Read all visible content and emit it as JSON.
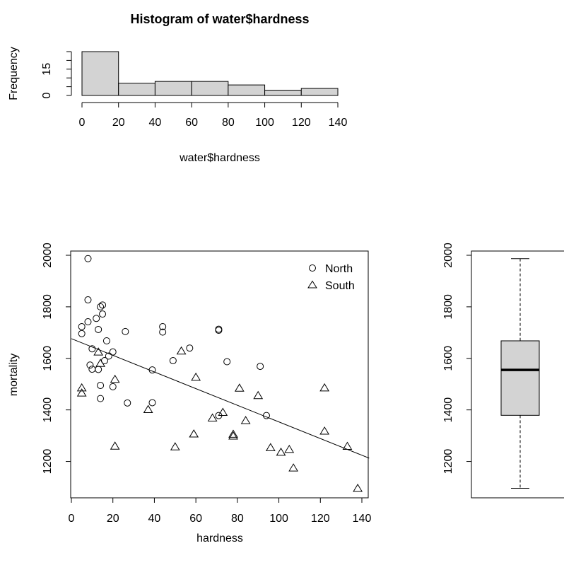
{
  "chart_data": [
    {
      "type": "bar",
      "title": "Histogram of water$hardness",
      "xlabel": "water$hardness",
      "ylabel": "Frequency",
      "bin_edges": [
        0,
        20,
        40,
        60,
        80,
        100,
        120,
        140
      ],
      "values": [
        25,
        7,
        8,
        8,
        6,
        3,
        4
      ],
      "xlim": [
        0,
        140
      ],
      "ylim": [
        0,
        25
      ],
      "x_ticks": [
        "0",
        "20",
        "40",
        "60",
        "80",
        "100",
        "120",
        "140"
      ],
      "y_ticks": [
        "0",
        "15"
      ],
      "bar_fill": "#d3d3d3"
    },
    {
      "type": "scatter",
      "xlabel": "hardness",
      "ylabel": "mortality",
      "xlim": [
        0,
        140
      ],
      "ylim": [
        1100,
        2000
      ],
      "x_ticks": [
        "0",
        "20",
        "40",
        "60",
        "80",
        "100",
        "120",
        "140"
      ],
      "y_ticks": [
        "1200",
        "1400",
        "1600",
        "1800",
        "2000"
      ],
      "legend_position": "top-right",
      "series": [
        {
          "name": "North",
          "marker": "circle",
          "points": [
            [
              8,
              1987
            ],
            [
              8,
              1827
            ],
            [
              5,
              1723
            ],
            [
              5,
              1696
            ],
            [
              8,
              1742
            ],
            [
              12,
              1755
            ],
            [
              14,
              1800
            ],
            [
              15,
              1807
            ],
            [
              15,
              1772
            ],
            [
              13,
              1712
            ],
            [
              17,
              1668
            ],
            [
              10,
              1637
            ],
            [
              20,
              1625
            ],
            [
              18,
              1609
            ],
            [
              16,
              1591
            ],
            [
              9,
              1574
            ],
            [
              10,
              1558
            ],
            [
              13,
              1557
            ],
            [
              14,
              1495
            ],
            [
              14,
              1444
            ],
            [
              26,
              1704
            ],
            [
              27,
              1427
            ],
            [
              44,
              1723
            ],
            [
              44,
              1702
            ],
            [
              39,
              1555
            ],
            [
              39,
              1428
            ],
            [
              49,
              1591
            ],
            [
              57,
              1640
            ],
            [
              71,
              1713
            ],
            [
              71,
              1709
            ],
            [
              75,
              1587
            ],
            [
              91,
              1569
            ],
            [
              94,
              1378
            ],
            [
              71,
              1378
            ],
            [
              20,
              1490
            ]
          ]
        },
        {
          "name": "South",
          "marker": "triangle",
          "points": [
            [
              5,
              1486
            ],
            [
              5,
              1466
            ],
            [
              13,
              1625
            ],
            [
              14,
              1581
            ],
            [
              21,
              1519
            ],
            [
              21,
              1260
            ],
            [
              37,
              1402
            ],
            [
              50,
              1257
            ],
            [
              53,
              1629
            ],
            [
              59,
              1307
            ],
            [
              60,
              1527
            ],
            [
              68,
              1369
            ],
            [
              73,
              1391
            ],
            [
              78,
              1299
            ],
            [
              78,
              1306
            ],
            [
              81,
              1485
            ],
            [
              84,
              1359
            ],
            [
              90,
              1456
            ],
            [
              96,
              1254
            ],
            [
              101,
              1236
            ],
            [
              105,
              1247
            ],
            [
              107,
              1175
            ],
            [
              122,
              1486
            ],
            [
              122,
              1318
            ],
            [
              133,
              1259
            ],
            [
              138,
              1096
            ]
          ]
        }
      ],
      "fit_line": {
        "intercept": 1676.4,
        "slope": -3.23
      }
    },
    {
      "type": "box",
      "y_ticks": [
        "1200",
        "1400",
        "1600",
        "1800",
        "2000"
      ],
      "ylim": [
        1100,
        2000
      ],
      "min": 1096,
      "q1": 1379,
      "median": 1555,
      "q3": 1668,
      "max": 1987,
      "box_fill": "#d3d3d3"
    }
  ]
}
